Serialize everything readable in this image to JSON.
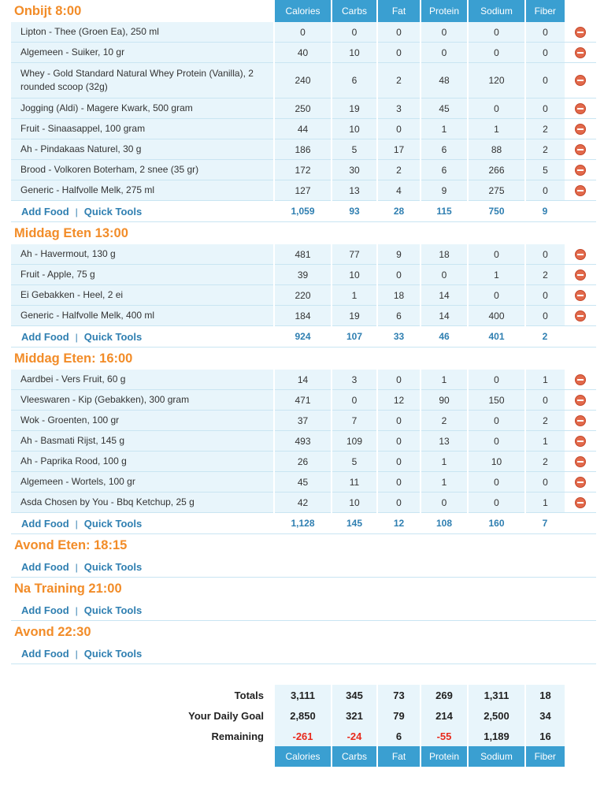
{
  "columns": [
    "Calories",
    "Carbs",
    "Fat",
    "Protein",
    "Sodium",
    "Fiber"
  ],
  "links": {
    "add_food": "Add Food",
    "quick_tools": "Quick Tools",
    "separator": "|"
  },
  "meals": [
    {
      "title": "Onbijt 8:00",
      "foods": [
        {
          "name": "Lipton - Thee (Groen Ea), 250 ml",
          "values": [
            "0",
            "0",
            "0",
            "0",
            "0",
            "0"
          ]
        },
        {
          "name": "Algemeen - Suiker, 10 gr",
          "values": [
            "40",
            "10",
            "0",
            "0",
            "0",
            "0"
          ]
        },
        {
          "name": "Whey - Gold Standard Natural Whey Protein (Vanilla), 2 rounded scoop (32g)",
          "values": [
            "240",
            "6",
            "2",
            "48",
            "120",
            "0"
          ]
        },
        {
          "name": "Jogging (Aldi) - Magere Kwark, 500 gram",
          "values": [
            "250",
            "19",
            "3",
            "45",
            "0",
            "0"
          ]
        },
        {
          "name": "Fruit - Sinaasappel, 100 gram",
          "values": [
            "44",
            "10",
            "0",
            "1",
            "1",
            "2"
          ]
        },
        {
          "name": "Ah - Pindakaas Naturel, 30 g",
          "values": [
            "186",
            "5",
            "17",
            "6",
            "88",
            "2"
          ]
        },
        {
          "name": "Brood - Volkoren Boterham, 2 snee (35 gr)",
          "values": [
            "172",
            "30",
            "2",
            "6",
            "266",
            "5"
          ]
        },
        {
          "name": "Generic - Halfvolle Melk, 275 ml",
          "values": [
            "127",
            "13",
            "4",
            "9",
            "275",
            "0"
          ]
        }
      ],
      "totals": [
        "1,059",
        "93",
        "28",
        "115",
        "750",
        "9"
      ]
    },
    {
      "title": "Middag Eten 13:00",
      "foods": [
        {
          "name": "Ah - Havermout, 130 g",
          "values": [
            "481",
            "77",
            "9",
            "18",
            "0",
            "0"
          ]
        },
        {
          "name": "Fruit - Apple, 75 g",
          "values": [
            "39",
            "10",
            "0",
            "0",
            "1",
            "2"
          ]
        },
        {
          "name": "Ei Gebakken - Heel, 2 ei",
          "values": [
            "220",
            "1",
            "18",
            "14",
            "0",
            "0"
          ]
        },
        {
          "name": "Generic - Halfvolle Melk, 400 ml",
          "values": [
            "184",
            "19",
            "6",
            "14",
            "400",
            "0"
          ]
        }
      ],
      "totals": [
        "924",
        "107",
        "33",
        "46",
        "401",
        "2"
      ]
    },
    {
      "title": "Middag Eten: 16:00",
      "foods": [
        {
          "name": "Aardbei - Vers Fruit, 60 g",
          "values": [
            "14",
            "3",
            "0",
            "1",
            "0",
            "1"
          ]
        },
        {
          "name": "Vleeswaren - Kip (Gebakken), 300 gram",
          "values": [
            "471",
            "0",
            "12",
            "90",
            "150",
            "0"
          ]
        },
        {
          "name": "Wok - Groenten, 100 gr",
          "values": [
            "37",
            "7",
            "0",
            "2",
            "0",
            "2"
          ]
        },
        {
          "name": "Ah - Basmati Rijst, 145 g",
          "values": [
            "493",
            "109",
            "0",
            "13",
            "0",
            "1"
          ]
        },
        {
          "name": "Ah - Paprika Rood, 100 g",
          "values": [
            "26",
            "5",
            "0",
            "1",
            "10",
            "2"
          ]
        },
        {
          "name": "Algemeen - Wortels, 100 gr",
          "values": [
            "45",
            "11",
            "0",
            "1",
            "0",
            "0"
          ]
        },
        {
          "name": "Asda Chosen by You - Bbq Ketchup, 25 g",
          "values": [
            "42",
            "10",
            "0",
            "0",
            "0",
            "1"
          ]
        }
      ],
      "totals": [
        "1,128",
        "145",
        "12",
        "108",
        "160",
        "7"
      ]
    },
    {
      "title": "Avond Eten: 18:15",
      "foods": [],
      "totals": []
    },
    {
      "title": "Na Training 21:00",
      "foods": [],
      "totals": []
    },
    {
      "title": "Avond 22:30",
      "foods": [],
      "totals": []
    }
  ],
  "summary": {
    "totals": {
      "label": "Totals",
      "values": [
        "3,111",
        "345",
        "73",
        "269",
        "1,311",
        "18"
      ]
    },
    "goal": {
      "label": "Your Daily Goal",
      "values": [
        "2,850",
        "321",
        "79",
        "214",
        "2,500",
        "34"
      ]
    },
    "remaining": {
      "label": "Remaining",
      "values": [
        "-261",
        "-24",
        "6",
        "-55",
        "1,189",
        "16"
      ]
    }
  },
  "colors": {
    "accent_header": "#3a9fd1",
    "meal_title": "#f28c28",
    "link": "#2f7fb1",
    "row_bg": "#e8f5fb",
    "negative": "#e8291c"
  },
  "icons": {
    "delete": "minus-circle-icon"
  }
}
